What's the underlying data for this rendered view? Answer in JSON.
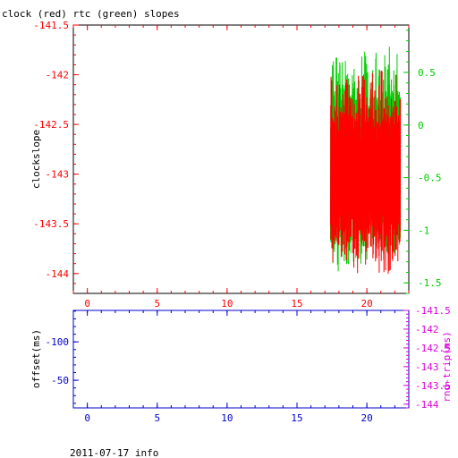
{
  "title": "clock (red) rtc (green) slopes",
  "footer": "2011-07-17 info",
  "colors": {
    "red": "#ff0000",
    "green": "#00cc00",
    "blue": "#0000cc",
    "magenta": "#dd00dd",
    "black": "#000000"
  },
  "chart_data": [
    {
      "type": "line",
      "ylabel": "clockslope",
      "x_ticks": [
        "0",
        "5",
        "10",
        "15",
        "20"
      ],
      "x_tick_values": [
        0,
        5,
        10,
        15,
        20
      ],
      "xlim": [
        -1,
        23
      ],
      "left_ylim": [
        -144.2,
        -141.5
      ],
      "left_ticks": [
        "-141.5",
        "-142",
        "-142.5",
        "-143",
        "-143.5",
        "-144"
      ],
      "left_tick_values": [
        -141.5,
        -142,
        -142.5,
        -143,
        -143.5,
        -144
      ],
      "right_ylim": [
        -1.6,
        0.95
      ],
      "right_ticks": [
        "0.5",
        "0",
        "-0.5",
        "-1",
        "-1.5"
      ],
      "right_tick_values": [
        0.5,
        0,
        -0.5,
        -1,
        -1.5
      ],
      "series": [
        {
          "color": "red",
          "axis": "left",
          "x_range": [
            17.4,
            22.4
          ],
          "y_range": [
            -144.1,
            -141.9
          ]
        },
        {
          "color": "green",
          "axis": "right",
          "x_range": [
            17.4,
            22.4
          ],
          "y_range": [
            -1.5,
            0.8
          ]
        }
      ]
    },
    {
      "type": "line",
      "ylabel": "offset(ms)",
      "right_ylabel": "rnd-trip(ms)",
      "x_ticks": [
        "0",
        "5",
        "10",
        "15",
        "20"
      ],
      "x_tick_values": [
        0,
        5,
        10,
        15,
        20
      ],
      "xlim": [
        -1,
        23
      ],
      "left_ylim": [
        -141,
        -14
      ],
      "left_ticks": [
        "-100",
        "-50"
      ],
      "left_tick_values": [
        -100,
        -50
      ],
      "right_ylim": [
        -144.1,
        -141.5
      ],
      "right_ticks": [
        "-141.5",
        "-142",
        "-142.5",
        "-143",
        "-143.5",
        "-144"
      ],
      "right_tick_values": [
        -141.5,
        -142,
        -142.5,
        -143,
        -143.5,
        -144
      ],
      "series": []
    }
  ]
}
